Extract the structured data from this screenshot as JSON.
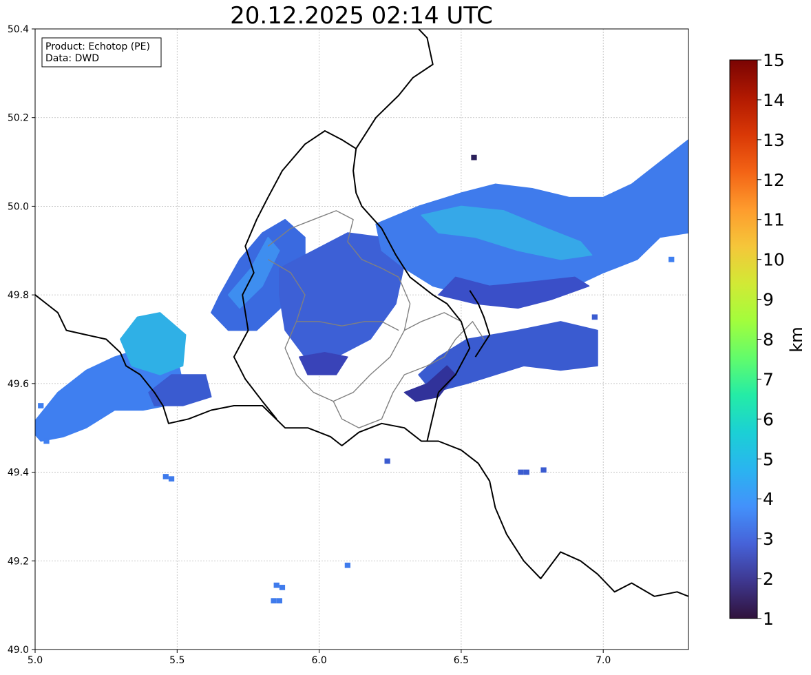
{
  "title": "20.12.2025 02:14 UTC",
  "info_box": {
    "product": "Product: Echotop (PE)",
    "data": "Data: DWD"
  },
  "map": {
    "lon_range": [
      5.0,
      7.3
    ],
    "lat_range": [
      49.0,
      50.4
    ],
    "x_ticks": [
      {
        "value": 5.0,
        "label": "5.0"
      },
      {
        "value": 5.5,
        "label": "5.5"
      },
      {
        "value": 6.0,
        "label": "6.0"
      },
      {
        "value": 6.5,
        "label": "6.5"
      },
      {
        "value": 7.0,
        "label": "7.0"
      }
    ],
    "y_ticks": [
      {
        "value": 49.0,
        "label": "49.0"
      },
      {
        "value": 49.2,
        "label": "49.2"
      },
      {
        "value": 49.4,
        "label": "49.4"
      },
      {
        "value": 49.6,
        "label": "49.6"
      },
      {
        "value": 49.8,
        "label": "49.8"
      },
      {
        "value": 50.0,
        "label": "50.0"
      },
      {
        "value": 50.2,
        "label": "50.2"
      },
      {
        "value": 50.4,
        "label": "50.4"
      }
    ],
    "grid": true,
    "grid_color": "#bbbbbb",
    "country_border_color": "#000000",
    "region_border_color": "#808080",
    "echo_areas": [
      {
        "id": "west-band",
        "value_km": 3.3,
        "color": "#3f7ff0",
        "points": [
          [
            4.98,
            49.5
          ],
          [
            5.08,
            49.58
          ],
          [
            5.18,
            49.63
          ],
          [
            5.28,
            49.66
          ],
          [
            5.38,
            49.68
          ],
          [
            5.45,
            49.7
          ],
          [
            5.5,
            49.66
          ],
          [
            5.52,
            49.6
          ],
          [
            5.46,
            49.55
          ],
          [
            5.38,
            49.54
          ],
          [
            5.28,
            49.54
          ],
          [
            5.18,
            49.5
          ],
          [
            5.1,
            49.48
          ],
          [
            5.02,
            49.47
          ]
        ]
      },
      {
        "id": "west-core",
        "value_km": 4.2,
        "color": "#2fb0e6",
        "points": [
          [
            5.3,
            49.7
          ],
          [
            5.36,
            49.75
          ],
          [
            5.44,
            49.76
          ],
          [
            5.53,
            49.71
          ],
          [
            5.52,
            49.64
          ],
          [
            5.44,
            49.62
          ],
          [
            5.34,
            49.64
          ]
        ]
      },
      {
        "id": "west-low",
        "value_km": 2.5,
        "color": "#3a5bd0",
        "points": [
          [
            5.4,
            49.58
          ],
          [
            5.48,
            49.62
          ],
          [
            5.6,
            49.62
          ],
          [
            5.62,
            49.57
          ],
          [
            5.52,
            49.55
          ],
          [
            5.42,
            49.55
          ]
        ]
      },
      {
        "id": "lux-mid",
        "value_km": 3.0,
        "color": "#3a6ae0",
        "points": [
          [
            5.65,
            49.8
          ],
          [
            5.72,
            49.88
          ],
          [
            5.8,
            49.94
          ],
          [
            5.88,
            49.97
          ],
          [
            5.95,
            49.93
          ],
          [
            5.95,
            49.85
          ],
          [
            5.88,
            49.78
          ],
          [
            5.78,
            49.72
          ],
          [
            5.68,
            49.72
          ],
          [
            5.62,
            49.76
          ]
        ]
      },
      {
        "id": "lux-core",
        "value_km": 2.6,
        "color": "#3d60d6",
        "points": [
          [
            5.86,
            49.86
          ],
          [
            5.98,
            49.9
          ],
          [
            6.1,
            49.94
          ],
          [
            6.22,
            49.93
          ],
          [
            6.3,
            49.87
          ],
          [
            6.27,
            49.78
          ],
          [
            6.18,
            49.7
          ],
          [
            6.06,
            49.66
          ],
          [
            5.95,
            49.66
          ],
          [
            5.88,
            49.72
          ],
          [
            5.86,
            49.8
          ]
        ]
      },
      {
        "id": "lux-south",
        "value_km": 2.0,
        "color": "#3943b8",
        "points": [
          [
            5.93,
            49.66
          ],
          [
            6.02,
            49.67
          ],
          [
            6.1,
            49.66
          ],
          [
            6.06,
            49.62
          ],
          [
            5.96,
            49.62
          ]
        ]
      },
      {
        "id": "north-band",
        "value_km": 3.2,
        "color": "#3f7bec",
        "points": [
          [
            6.2,
            49.96
          ],
          [
            6.35,
            50.0
          ],
          [
            6.5,
            50.03
          ],
          [
            6.62,
            50.05
          ],
          [
            6.75,
            50.04
          ],
          [
            6.88,
            50.02
          ],
          [
            7.0,
            50.02
          ],
          [
            7.1,
            50.05
          ],
          [
            7.2,
            50.1
          ],
          [
            7.3,
            50.15
          ],
          [
            7.3,
            49.94
          ],
          [
            7.2,
            49.93
          ],
          [
            7.12,
            49.88
          ],
          [
            7.0,
            49.85
          ],
          [
            6.9,
            49.82
          ],
          [
            6.78,
            49.79
          ],
          [
            6.65,
            49.78
          ],
          [
            6.52,
            49.8
          ],
          [
            6.4,
            49.82
          ],
          [
            6.3,
            49.86
          ],
          [
            6.22,
            49.9
          ]
        ]
      },
      {
        "id": "north-core",
        "value_km": 4.0,
        "color": "#36a8e8",
        "points": [
          [
            6.36,
            49.98
          ],
          [
            6.5,
            50.0
          ],
          [
            6.65,
            49.99
          ],
          [
            6.8,
            49.95
          ],
          [
            6.92,
            49.92
          ],
          [
            6.96,
            49.89
          ],
          [
            6.85,
            49.88
          ],
          [
            6.7,
            49.9
          ],
          [
            6.55,
            49.93
          ],
          [
            6.42,
            49.94
          ]
        ]
      },
      {
        "id": "north-low",
        "value_km": 2.3,
        "color": "#3a4fc8",
        "points": [
          [
            6.42,
            49.8
          ],
          [
            6.55,
            49.78
          ],
          [
            6.7,
            49.77
          ],
          [
            6.82,
            49.79
          ],
          [
            6.95,
            49.82
          ],
          [
            6.9,
            49.84
          ],
          [
            6.76,
            49.83
          ],
          [
            6.6,
            49.82
          ],
          [
            6.48,
            49.84
          ]
        ]
      },
      {
        "id": "east-patch",
        "value_km": 2.5,
        "color": "#3a5bd0",
        "points": [
          [
            6.52,
            49.7
          ],
          [
            6.7,
            49.72
          ],
          [
            6.85,
            49.74
          ],
          [
            6.98,
            49.72
          ],
          [
            6.98,
            49.64
          ],
          [
            6.85,
            49.63
          ],
          [
            6.72,
            49.64
          ],
          [
            6.62,
            49.62
          ],
          [
            6.52,
            49.6
          ],
          [
            6.4,
            49.58
          ],
          [
            6.35,
            49.62
          ],
          [
            6.42,
            49.66
          ]
        ]
      },
      {
        "id": "east-dark",
        "value_km": 1.6,
        "color": "#31329a",
        "points": [
          [
            6.3,
            49.58
          ],
          [
            6.38,
            49.6
          ],
          [
            6.45,
            49.64
          ],
          [
            6.48,
            49.62
          ],
          [
            6.42,
            49.57
          ],
          [
            6.34,
            49.56
          ]
        ]
      },
      {
        "id": "belgium-strip",
        "value_km": 3.5,
        "color": "#3e8ef0",
        "points": [
          [
            5.68,
            49.8
          ],
          [
            5.76,
            49.86
          ],
          [
            5.82,
            49.93
          ],
          [
            5.86,
            49.9
          ],
          [
            5.8,
            49.82
          ],
          [
            5.72,
            49.77
          ]
        ]
      }
    ],
    "echo_cells": [
      {
        "lon": 6.545,
        "lat": 50.11,
        "value_km": 1.3,
        "color": "#2a1f5a"
      },
      {
        "lon": 5.46,
        "lat": 49.39,
        "value_km": 3.2,
        "color": "#3f7bec"
      },
      {
        "lon": 5.48,
        "lat": 49.385,
        "value_km": 3.2,
        "color": "#3f7bec"
      },
      {
        "lon": 6.24,
        "lat": 49.425,
        "value_km": 2.5,
        "color": "#3a5bd0"
      },
      {
        "lon": 6.1,
        "lat": 49.19,
        "value_km": 3.2,
        "color": "#3f7bec"
      },
      {
        "lon": 5.85,
        "lat": 49.145,
        "value_km": 3.2,
        "color": "#3f7bec"
      },
      {
        "lon": 5.87,
        "lat": 49.14,
        "value_km": 3.2,
        "color": "#3f7bec"
      },
      {
        "lon": 5.86,
        "lat": 49.11,
        "value_km": 3.2,
        "color": "#3f7bec"
      },
      {
        "lon": 5.84,
        "lat": 49.11,
        "value_km": 3.2,
        "color": "#3f7bec"
      },
      {
        "lon": 6.71,
        "lat": 49.4,
        "value_km": 2.5,
        "color": "#3a5bd0"
      },
      {
        "lon": 6.73,
        "lat": 49.4,
        "value_km": 2.5,
        "color": "#3a5bd0"
      },
      {
        "lon": 6.79,
        "lat": 49.405,
        "value_km": 2.5,
        "color": "#3a5bd0"
      },
      {
        "lon": 5.02,
        "lat": 49.55,
        "value_km": 3.3,
        "color": "#3f7ff0"
      },
      {
        "lon": 5.04,
        "lat": 49.47,
        "value_km": 3.3,
        "color": "#3f7ff0"
      },
      {
        "lon": 7.24,
        "lat": 49.88,
        "value_km": 3.3,
        "color": "#3f7ff0"
      },
      {
        "lon": 6.97,
        "lat": 49.75,
        "value_km": 2.5,
        "color": "#3a5bd0"
      }
    ],
    "country_borders": [
      [
        [
          5.0,
          49.8
        ],
        [
          5.04,
          49.78
        ],
        [
          5.08,
          49.76
        ],
        [
          5.11,
          49.72
        ],
        [
          5.18,
          49.71
        ],
        [
          5.25,
          49.7
        ],
        [
          5.3,
          49.67
        ],
        [
          5.32,
          49.64
        ],
        [
          5.37,
          49.62
        ],
        [
          5.42,
          49.58
        ],
        [
          5.45,
          49.55
        ],
        [
          5.47,
          49.51
        ],
        [
          5.54,
          49.52
        ],
        [
          5.62,
          49.54
        ],
        [
          5.7,
          49.55
        ],
        [
          5.8,
          49.55
        ],
        [
          5.88,
          49.5
        ],
        [
          5.96,
          49.5
        ],
        [
          6.04,
          49.48
        ],
        [
          6.08,
          49.46
        ],
        [
          6.14,
          49.49
        ],
        [
          6.22,
          49.51
        ],
        [
          6.3,
          49.5
        ],
        [
          6.36,
          49.47
        ],
        [
          6.42,
          49.47
        ],
        [
          6.5,
          49.45
        ],
        [
          6.56,
          49.42
        ],
        [
          6.6,
          49.38
        ],
        [
          6.62,
          49.32
        ],
        [
          6.66,
          49.26
        ],
        [
          6.72,
          49.2
        ],
        [
          6.78,
          49.16
        ],
        [
          6.85,
          49.22
        ],
        [
          6.92,
          49.2
        ],
        [
          6.98,
          49.17
        ],
        [
          7.04,
          49.13
        ],
        [
          7.1,
          49.15
        ],
        [
          7.18,
          49.12
        ],
        [
          7.26,
          49.13
        ],
        [
          7.3,
          49.12
        ]
      ],
      [
        [
          5.85,
          49.52
        ],
        [
          5.8,
          49.56
        ],
        [
          5.74,
          49.61
        ],
        [
          5.7,
          49.66
        ],
        [
          5.75,
          49.72
        ],
        [
          5.73,
          49.8
        ],
        [
          5.77,
          49.85
        ],
        [
          5.74,
          49.91
        ],
        [
          5.78,
          49.97
        ],
        [
          5.82,
          50.02
        ],
        [
          5.87,
          50.08
        ],
        [
          5.95,
          50.14
        ],
        [
          6.02,
          50.17
        ],
        [
          6.08,
          50.15
        ],
        [
          6.13,
          50.13
        ],
        [
          6.12,
          50.08
        ],
        [
          6.13,
          50.03
        ],
        [
          6.15,
          50.0
        ],
        [
          6.22,
          49.95
        ],
        [
          6.27,
          49.89
        ],
        [
          6.32,
          49.84
        ],
        [
          6.4,
          49.8
        ],
        [
          6.45,
          49.78
        ],
        [
          6.5,
          49.74
        ],
        [
          6.53,
          49.68
        ],
        [
          6.48,
          49.62
        ],
        [
          6.42,
          49.58
        ],
        [
          6.38,
          49.47
        ]
      ],
      [
        [
          6.13,
          50.13
        ],
        [
          6.2,
          50.2
        ],
        [
          6.28,
          50.25
        ],
        [
          6.33,
          50.29
        ],
        [
          6.4,
          50.32
        ],
        [
          6.38,
          50.38
        ],
        [
          6.35,
          50.4
        ]
      ],
      [
        [
          6.53,
          49.81
        ],
        [
          6.56,
          49.78
        ],
        [
          6.58,
          49.75
        ],
        [
          6.6,
          49.71
        ],
        [
          6.55,
          49.66
        ]
      ]
    ],
    "region_borders": [
      [
        [
          5.82,
          49.91
        ],
        [
          5.9,
          49.95
        ],
        [
          5.98,
          49.97
        ],
        [
          6.06,
          49.99
        ],
        [
          6.12,
          49.97
        ],
        [
          6.1,
          49.92
        ],
        [
          6.15,
          49.88
        ],
        [
          6.22,
          49.86
        ],
        [
          6.28,
          49.84
        ],
        [
          6.32,
          49.78
        ],
        [
          6.3,
          49.72
        ],
        [
          6.25,
          49.66
        ],
        [
          6.18,
          49.62
        ],
        [
          6.12,
          49.58
        ],
        [
          6.05,
          49.56
        ],
        [
          5.98,
          49.58
        ],
        [
          5.92,
          49.62
        ],
        [
          5.88,
          49.68
        ],
        [
          5.92,
          49.74
        ],
        [
          5.95,
          49.8
        ],
        [
          5.9,
          49.85
        ],
        [
          5.82,
          49.88
        ]
      ],
      [
        [
          6.05,
          49.56
        ],
        [
          6.08,
          49.52
        ],
        [
          6.14,
          49.5
        ],
        [
          6.22,
          49.52
        ],
        [
          6.26,
          49.58
        ],
        [
          6.3,
          49.62
        ],
        [
          6.38,
          49.64
        ],
        [
          6.44,
          49.66
        ],
        [
          6.48,
          49.7
        ],
        [
          6.54,
          49.74
        ],
        [
          6.58,
          49.7
        ]
      ],
      [
        [
          6.3,
          49.72
        ],
        [
          6.36,
          49.74
        ],
        [
          6.44,
          49.76
        ],
        [
          6.5,
          49.74
        ]
      ],
      [
        [
          5.92,
          49.74
        ],
        [
          6.0,
          49.74
        ],
        [
          6.08,
          49.73
        ],
        [
          6.16,
          49.74
        ],
        [
          6.22,
          49.74
        ],
        [
          6.28,
          49.72
        ]
      ]
    ]
  },
  "colorbar": {
    "label": "km",
    "min": 1,
    "max": 15,
    "ticks": [
      "1",
      "2",
      "3",
      "4",
      "5",
      "6",
      "7",
      "8",
      "9",
      "10",
      "11",
      "12",
      "13",
      "14",
      "15"
    ],
    "stops": [
      "#30123b",
      "#3e378f",
      "#4662d8",
      "#4391fb",
      "#2ab4f0",
      "#1bd0d5",
      "#24eca6",
      "#62fc6b",
      "#a3fd3c",
      "#d2e935",
      "#f5c63a",
      "#fe9b2d",
      "#f36315",
      "#d93806",
      "#b11901",
      "#7a0403"
    ]
  }
}
